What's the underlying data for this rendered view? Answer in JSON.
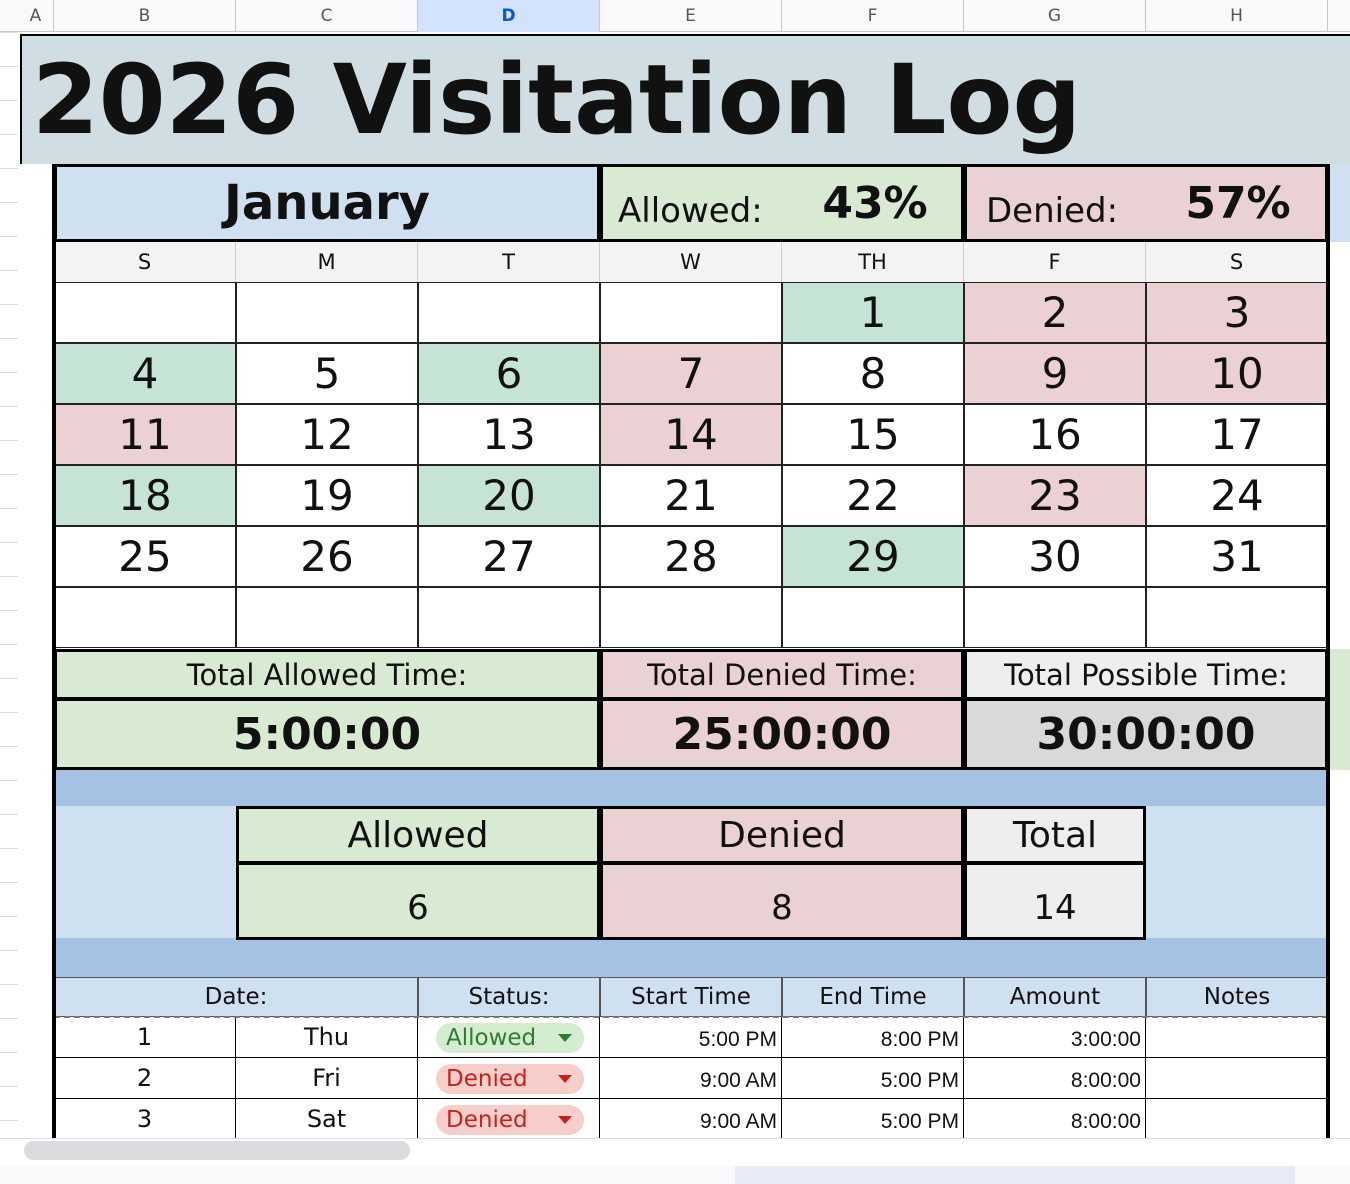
{
  "sheet": {
    "columns": [
      "A",
      "B",
      "C",
      "D",
      "E",
      "F",
      "G",
      "H"
    ],
    "selected_column": 3
  },
  "title": "2026 Visitation Log",
  "month": "January",
  "allowed_label": "Allowed:",
  "allowed_pct": "43%",
  "denied_label": "Denied:",
  "denied_pct": "57%",
  "weekdays": [
    "S",
    "M",
    "T",
    "W",
    "TH",
    "F",
    "S"
  ],
  "weeks": [
    [
      null,
      null,
      null,
      null,
      1,
      2,
      3
    ],
    [
      4,
      5,
      6,
      7,
      8,
      9,
      10
    ],
    [
      11,
      12,
      13,
      14,
      15,
      16,
      17
    ],
    [
      18,
      19,
      20,
      21,
      22,
      23,
      24
    ],
    [
      25,
      26,
      27,
      28,
      29,
      30,
      31
    ],
    [
      null,
      null,
      null,
      null,
      null,
      null,
      null
    ]
  ],
  "cell_colors": [
    [
      null,
      null,
      null,
      null,
      "#c6e4d5",
      "#ebd0d4",
      "#ebd0d4"
    ],
    [
      "#c6e4d5",
      null,
      "#c6e4d5",
      "#ebd0d4",
      null,
      "#ebd0d4",
      "#ebd0d4"
    ],
    [
      "#ebd0d4",
      null,
      null,
      "#ebd0d4",
      null,
      null,
      null
    ],
    [
      "#c6e4d5",
      null,
      "#c6e4d5",
      null,
      null,
      "#ebd0d4",
      null
    ],
    [
      null,
      null,
      null,
      null,
      "#c6e4d5",
      null,
      null
    ],
    [
      null,
      null,
      null,
      null,
      null,
      null,
      null
    ]
  ],
  "totals": {
    "labels": [
      "Total Allowed Time:",
      "Total Denied Time:",
      "Total Possible Time:"
    ],
    "values": [
      "5:00:00",
      "25:00:00",
      "30:00:00"
    ]
  },
  "summary": {
    "headers": [
      "Allowed",
      "Denied",
      "Total"
    ],
    "values": [
      6,
      8,
      14
    ]
  },
  "log": {
    "headers": [
      "Date:",
      "Status:",
      "Start Time",
      "End Time",
      "Amount",
      "Notes"
    ],
    "rows": [
      {
        "date": 1,
        "day": "Thu",
        "status": "Allowed",
        "status_bg": "#d4ecd0",
        "status_fg": "#2e7d32",
        "start": "5:00 PM",
        "end": "8:00 PM",
        "amount": "3:00:00"
      },
      {
        "date": 2,
        "day": "Fri",
        "status": "Denied",
        "status_bg": "#f6cfcb",
        "status_fg": "#c5221f",
        "start": "9:00 AM",
        "end": "5:00 PM",
        "amount": "8:00:00"
      },
      {
        "date": 3,
        "day": "Sat",
        "status": "Denied",
        "status_bg": "#f6cfcb",
        "status_fg": "#c5221f",
        "start": "9:00 AM",
        "end": "5:00 PM",
        "amount": "8:00:00"
      }
    ]
  }
}
